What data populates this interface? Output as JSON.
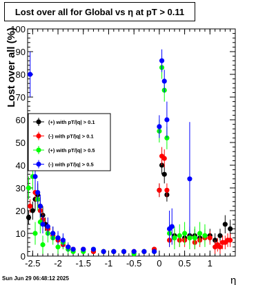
{
  "title": "Lost over all for Global vs    η at pT > 0.11",
  "footer_date": "Sun Jun 29 06:48:12 2025",
  "chart_data": {
    "type": "scatter",
    "title": "Lost over all for Global vs    η at pT > 0.11",
    "xlabel": "η",
    "ylabel": "Lost over all (%)",
    "xlim": [
      -2.6,
      1.5
    ],
    "ylim": [
      0,
      100
    ],
    "x_ticks": [
      "-2.5",
      "-2",
      "-1.5",
      "-1",
      "-0.5",
      "0",
      "0.5",
      "1"
    ],
    "x_tick_values": [
      -2.5,
      -2,
      -1.5,
      -1,
      -0.5,
      0,
      0.5,
      1
    ],
    "y_ticks": [
      "0",
      "10",
      "20",
      "30",
      "40",
      "50",
      "60",
      "70",
      "80",
      "90",
      "100"
    ],
    "y_tick_values": [
      0,
      10,
      20,
      30,
      40,
      50,
      60,
      70,
      80,
      90,
      100
    ],
    "grid": true,
    "legend_position": "middle-left",
    "series": [
      {
        "name": "(+) with pT/|q| > 0.1",
        "color": "#000000",
        "x": [
          -2.58,
          -2.5,
          -2.45,
          -2.4,
          -2.35,
          -2.3,
          -2.25,
          -2.2,
          -2.1,
          -2.0,
          -1.9,
          -1.8,
          -1.7,
          -1.5,
          -1.3,
          -1.1,
          -0.9,
          -0.7,
          -0.5,
          -0.3,
          -0.1,
          0.0,
          0.05,
          0.1,
          0.15,
          0.3,
          0.5,
          0.6,
          0.7,
          0.8,
          0.9,
          1.0,
          1.1,
          1.2,
          1.3,
          1.4
        ],
        "y": [
          17,
          20,
          25,
          27,
          22,
          18,
          14,
          12,
          10,
          8,
          6,
          4,
          3,
          3,
          2,
          2,
          2,
          2,
          2,
          2,
          3,
          29,
          40,
          36,
          27,
          9,
          8,
          9,
          9,
          8,
          9,
          9,
          7,
          9,
          14,
          12
        ],
        "err": [
          3,
          4,
          5,
          5,
          4,
          4,
          3,
          3,
          3,
          2,
          2,
          1,
          1,
          1,
          1,
          1,
          1,
          1,
          1,
          1,
          1,
          3,
          4,
          4,
          3,
          3,
          3,
          3,
          3,
          3,
          3,
          3,
          3,
          3,
          4,
          4
        ]
      },
      {
        "name": "(-) with pT/|q| > 0.1",
        "color": "#ff0000",
        "x": [
          -2.55,
          -2.45,
          -2.4,
          -2.35,
          -2.3,
          -2.2,
          -2.1,
          -2.0,
          -1.9,
          -1.8,
          -1.7,
          -1.5,
          -1.3,
          -1.1,
          -0.9,
          -0.7,
          -0.5,
          -0.3,
          -0.1,
          0.0,
          0.05,
          0.1,
          0.15,
          0.2,
          0.3,
          0.4,
          0.5,
          0.6,
          0.7,
          0.8,
          0.9,
          1.0,
          1.1,
          1.15,
          1.2,
          1.25,
          1.3,
          1.35,
          1.4
        ],
        "y": [
          22,
          28,
          25,
          20,
          16,
          12,
          9,
          7,
          5,
          4,
          3,
          3,
          2,
          2,
          2,
          2,
          2,
          2,
          3,
          29,
          44,
          43,
          29,
          7,
          8,
          7,
          7,
          8,
          6,
          7,
          8,
          8,
          4,
          5,
          4,
          6,
          6,
          7,
          7
        ],
        "err": [
          3,
          4,
          4,
          3,
          3,
          3,
          2,
          2,
          2,
          1,
          1,
          1,
          1,
          1,
          1,
          1,
          1,
          1,
          1,
          3,
          4,
          4,
          3,
          3,
          3,
          3,
          3,
          3,
          3,
          3,
          3,
          3,
          3,
          3,
          3,
          3,
          3,
          3,
          3
        ]
      },
      {
        "name": "(+) with pT/|q| > 0.5",
        "color": "#00ff00",
        "x": [
          -2.58,
          -2.5,
          -2.45,
          -2.4,
          -2.35,
          -2.3,
          -2.2,
          -2.1,
          -2.0,
          -1.9,
          -1.8,
          -1.7,
          -1.5,
          -1.3,
          -1.1,
          -0.9,
          -0.7,
          -0.5,
          -0.3,
          -0.1,
          0.0,
          0.05,
          0.1,
          0.15,
          0.2,
          0.3,
          0.4,
          0.5,
          0.6,
          0.7,
          0.8,
          0.9
        ],
        "y": [
          30,
          35,
          10,
          25,
          15,
          5,
          10,
          8,
          4,
          6,
          3,
          2,
          2,
          3,
          2,
          2,
          2,
          1,
          2,
          2,
          55,
          83,
          73,
          52,
          10,
          8,
          9,
          10,
          8,
          8,
          10,
          9
        ],
        "err": [
          5,
          6,
          5,
          5,
          5,
          4,
          4,
          3,
          3,
          3,
          2,
          1,
          1,
          1,
          1,
          1,
          1,
          1,
          1,
          1,
          5,
          5,
          5,
          5,
          5,
          5,
          5,
          5,
          5,
          5,
          5,
          5
        ]
      },
      {
        "name": "(-) with pT/|q| > 0.5",
        "color": "#0000ff",
        "x": [
          -2.55,
          -2.45,
          -2.4,
          -2.35,
          -2.3,
          -2.2,
          -2.1,
          -2.0,
          -1.9,
          -1.8,
          -1.7,
          -1.5,
          -1.3,
          -1.1,
          -0.9,
          -0.7,
          -0.5,
          -0.3,
          -0.1,
          0.0,
          0.05,
          0.1,
          0.15,
          0.2,
          0.25,
          0.6
        ],
        "y": [
          80,
          35,
          28,
          22,
          14,
          13,
          10,
          8,
          7,
          4,
          3,
          3,
          3,
          2,
          2,
          2,
          2,
          2,
          2,
          57,
          86,
          77,
          60,
          12,
          13,
          34
        ],
        "err": [
          10,
          6,
          5,
          5,
          4,
          4,
          3,
          3,
          3,
          2,
          1,
          1,
          1,
          1,
          1,
          1,
          1,
          1,
          1,
          5,
          5,
          5,
          8,
          8,
          8,
          25
        ]
      }
    ]
  }
}
